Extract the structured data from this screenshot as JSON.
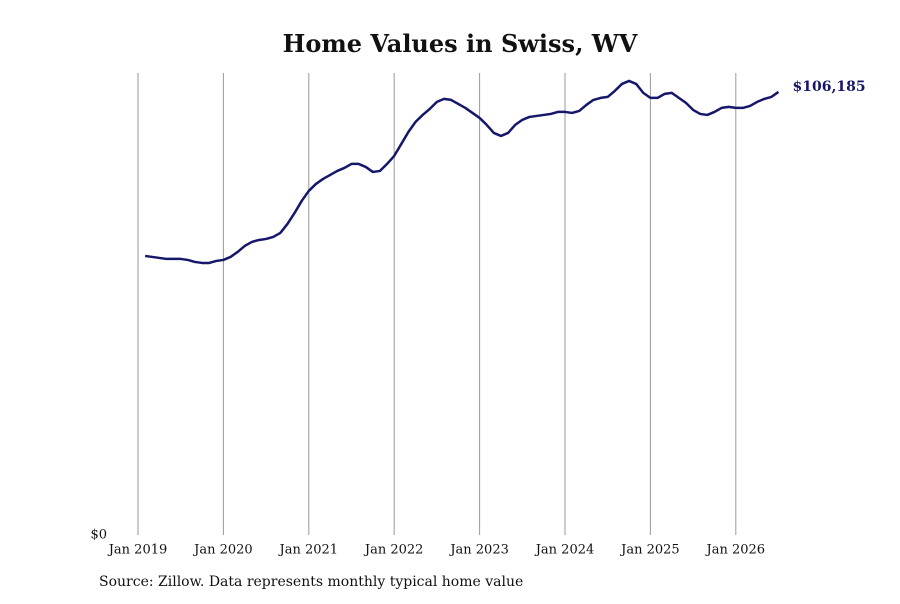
{
  "chart_data": {
    "type": "line",
    "title": "Home Values in Swiss, WV",
    "source": "Source: Zillow. Data represents monthly typical home value",
    "x": [
      "2019-02",
      "2019-03",
      "2019-04",
      "2019-05",
      "2019-06",
      "2019-07",
      "2019-08",
      "2019-09",
      "2019-10",
      "2019-11",
      "2019-12",
      "2020-01",
      "2020-02",
      "2020-03",
      "2020-04",
      "2020-05",
      "2020-06",
      "2020-07",
      "2020-08",
      "2020-09",
      "2020-10",
      "2020-11",
      "2020-12",
      "2021-01",
      "2021-02",
      "2021-03",
      "2021-04",
      "2021-05",
      "2021-06",
      "2021-07",
      "2021-08",
      "2021-09",
      "2021-10",
      "2021-11",
      "2021-12",
      "2022-01",
      "2022-02",
      "2022-03",
      "2022-04",
      "2022-05",
      "2022-06",
      "2022-07",
      "2022-08",
      "2022-09",
      "2022-10",
      "2022-11",
      "2022-12",
      "2023-01",
      "2023-02",
      "2023-03",
      "2023-04",
      "2023-05",
      "2023-06",
      "2023-07",
      "2023-08",
      "2023-09",
      "2023-10",
      "2023-11",
      "2023-12",
      "2024-01",
      "2024-02",
      "2024-03",
      "2024-04",
      "2024-05",
      "2024-06",
      "2024-07",
      "2024-08",
      "2024-09",
      "2024-10",
      "2024-11",
      "2024-12",
      "2025-01",
      "2025-02",
      "2025-03",
      "2025-04",
      "2025-05",
      "2025-06",
      "2025-07",
      "2025-08",
      "2025-09",
      "2025-10",
      "2025-11",
      "2025-12",
      "2026-01",
      "2026-02",
      "2026-03",
      "2026-04",
      "2026-05",
      "2026-06",
      "2026-07"
    ],
    "series": [
      {
        "name": "Home value",
        "color": "#16166a",
        "values": [
          66880,
          66640,
          66400,
          66160,
          66160,
          66160,
          65920,
          65440,
          65200,
          65200,
          65680,
          65920,
          66640,
          67840,
          69270,
          70230,
          70710,
          70950,
          71430,
          72390,
          74550,
          77180,
          80060,
          82460,
          84130,
          85330,
          86290,
          87250,
          87970,
          88930,
          88930,
          88210,
          87010,
          87250,
          88930,
          90850,
          93720,
          96600,
          99000,
          100670,
          102110,
          103790,
          104510,
          104270,
          103310,
          102350,
          101150,
          99950,
          98280,
          96360,
          95640,
          96360,
          98280,
          99480,
          100190,
          100430,
          100670,
          100910,
          101390,
          101390,
          101150,
          101630,
          103070,
          104270,
          104750,
          104990,
          106430,
          108100,
          108820,
          108100,
          105950,
          104750,
          104750,
          105710,
          105950,
          104750,
          103550,
          101870,
          100910,
          100670,
          101390,
          102350,
          102590,
          102350,
          102350,
          102830,
          103790,
          104510,
          104990,
          106185
        ]
      }
    ],
    "value_labels": [
      null,
      null,
      null,
      null,
      null,
      null,
      null,
      null,
      null,
      null,
      null,
      null,
      null,
      null,
      null,
      null,
      null,
      null,
      null,
      null,
      null,
      null,
      null,
      null,
      null,
      null,
      null,
      null,
      null,
      null,
      null,
      null,
      null,
      null,
      null,
      null,
      null,
      null,
      null,
      null,
      null,
      null,
      null,
      null,
      null,
      null,
      null,
      null,
      null,
      null,
      null,
      null,
      null,
      null,
      null,
      null,
      null,
      null,
      null,
      null,
      null,
      null,
      null,
      null,
      null,
      null,
      null,
      null,
      null,
      null,
      null,
      null,
      null,
      null,
      null,
      null,
      null,
      null,
      null,
      null,
      null,
      null,
      null,
      null,
      null,
      null,
      null,
      null,
      null,
      "$106,185"
    ],
    "xlim": [
      "2019-01",
      "2026-07"
    ],
    "xticks": [
      {
        "value": "2019-01",
        "label": "Jan 2019"
      },
      {
        "value": "2020-01",
        "label": "Jan 2020"
      },
      {
        "value": "2021-01",
        "label": "Jan 2021"
      },
      {
        "value": "2022-01",
        "label": "Jan 2022"
      },
      {
        "value": "2023-01",
        "label": "Jan 2023"
      },
      {
        "value": "2024-01",
        "label": "Jan 2024"
      },
      {
        "value": "2025-01",
        "label": "Jan 2025"
      },
      {
        "value": "2026-01",
        "label": "Jan 2026"
      }
    ],
    "ylim": [
      0,
      110000
    ],
    "yticks": [
      {
        "value": 0,
        "label": "$0"
      }
    ],
    "grid": "x"
  }
}
